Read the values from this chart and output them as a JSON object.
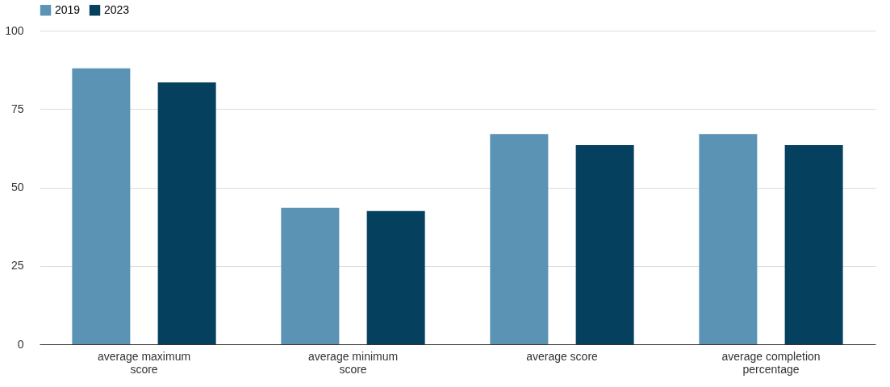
{
  "chart_data": {
    "type": "bar",
    "categories": [
      "average maximum score",
      "average minimum score",
      "average score",
      "average completion percentage"
    ],
    "series": [
      {
        "name": "2019",
        "color": "#5b93b4",
        "values": [
          88,
          43.5,
          67,
          67
        ]
      },
      {
        "name": "2023",
        "color": "#05405e",
        "values": [
          83.5,
          42.5,
          63.5,
          63.5
        ]
      }
    ],
    "ylim": [
      0,
      100
    ],
    "yticks": [
      0,
      25,
      50,
      75,
      100
    ],
    "grid": "y",
    "legend": "top"
  }
}
